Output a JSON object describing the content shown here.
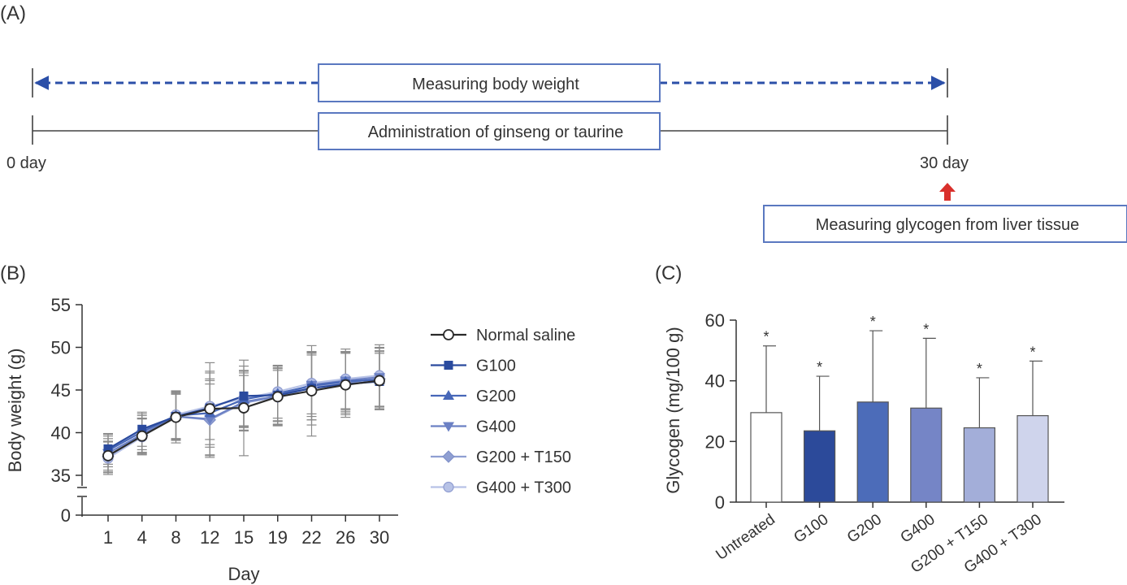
{
  "panels": {
    "a_label": "(A)",
    "b_label": "(B)",
    "c_label": "(C)"
  },
  "timeline": {
    "measure_box": "Measuring body weight",
    "admin_box": "Administration of ginseng or taurine",
    "start_label": "0 day",
    "end_label": "30 day",
    "glycogen_box": "Measuring glycogen from liver tissue",
    "colors": {
      "dashed": "#2b4fa8",
      "box_border": "#5a78c0",
      "red_arrow": "#d9302c"
    }
  },
  "chart_data": [
    {
      "type": "line",
      "panel": "B",
      "xlabel": "Day",
      "ylabel": "Body weight (g)",
      "x": [
        1,
        4,
        8,
        12,
        15,
        19,
        22,
        26,
        30
      ],
      "xticks": [
        "1",
        "4",
        "8",
        "12",
        "15",
        "19",
        "22",
        "26",
        "30"
      ],
      "yticks": [
        "0",
        "35",
        "40",
        "45",
        "50",
        "55"
      ],
      "ylim": [
        35,
        55
      ],
      "axis_break": true,
      "legend_position": "right",
      "series": [
        {
          "name": "Normal saline",
          "marker": "circle-open",
          "color": "#2a2a2a",
          "values": [
            37.3,
            39.6,
            41.8,
            42.8,
            42.9,
            44.2,
            44.9,
            45.6,
            46.1
          ],
          "errors": [
            2.0,
            2.1,
            3.0,
            5.4,
            5.6,
            3.4,
            5.3,
            3.8,
            3.4
          ]
        },
        {
          "name": "G100",
          "marker": "square",
          "color": "#2a4a9e",
          "values": [
            38.1,
            40.4,
            41.9,
            42.9,
            44.3,
            44.4,
            45.2,
            45.7,
            46.0
          ],
          "errors": [
            1.8,
            2.0,
            2.8,
            4.3,
            3.5,
            3.4,
            4.3,
            3.6,
            3.3
          ]
        },
        {
          "name": "G200",
          "marker": "triangle-up",
          "color": "#4767b8",
          "values": [
            37.9,
            40.1,
            42.0,
            42.3,
            43.9,
            44.6,
            45.5,
            46.0,
            46.2
          ],
          "errors": [
            1.9,
            2.1,
            2.9,
            4.0,
            3.3,
            3.2,
            4.0,
            3.5,
            3.4
          ]
        },
        {
          "name": "G400",
          "marker": "triangle-down",
          "color": "#6b80c4",
          "values": [
            37.6,
            39.8,
            41.9,
            41.6,
            43.6,
            44.3,
            45.6,
            46.1,
            46.5
          ],
          "errors": [
            2.0,
            2.2,
            2.7,
            4.5,
            3.4,
            3.0,
            3.7,
            3.4,
            3.5
          ]
        },
        {
          "name": "G200 + T150",
          "marker": "diamond",
          "color": "#8f9fd2",
          "values": [
            37.2,
            39.7,
            41.9,
            41.5,
            43.5,
            44.2,
            45.3,
            45.9,
            46.3
          ],
          "errors": [
            1.8,
            2.0,
            2.6,
            4.2,
            3.2,
            3.3,
            3.8,
            3.6,
            3.6
          ]
        },
        {
          "name": "G400 + T300",
          "marker": "circle-filled",
          "color": "#b7c2e6",
          "values": [
            37.0,
            39.5,
            42.1,
            43.1,
            44.0,
            44.8,
            45.8,
            46.3,
            46.7
          ],
          "errors": [
            1.9,
            2.1,
            2.8,
            3.9,
            3.3,
            3.1,
            3.6,
            3.5,
            3.6
          ]
        }
      ]
    },
    {
      "type": "bar",
      "panel": "C",
      "ylabel": "Glycogen (mg/100 g)",
      "categories": [
        "Untreated",
        "G100",
        "G200",
        "G400",
        "G200 + T150",
        "G400 + T300"
      ],
      "values": [
        29.5,
        23.5,
        33.0,
        31.0,
        24.5,
        28.5
      ],
      "errors": [
        22.0,
        18.0,
        23.5,
        23.0,
        16.5,
        18.0
      ],
      "significance": [
        "*",
        "*",
        "*",
        "*",
        "*",
        "*"
      ],
      "colors": [
        "#ffffff",
        "#2c4a9a",
        "#4c6cb9",
        "#7585c6",
        "#a3aed9",
        "#cfd4ec"
      ],
      "ylim": [
        0,
        60
      ],
      "yticks": [
        "0",
        "20",
        "40",
        "60"
      ]
    }
  ]
}
